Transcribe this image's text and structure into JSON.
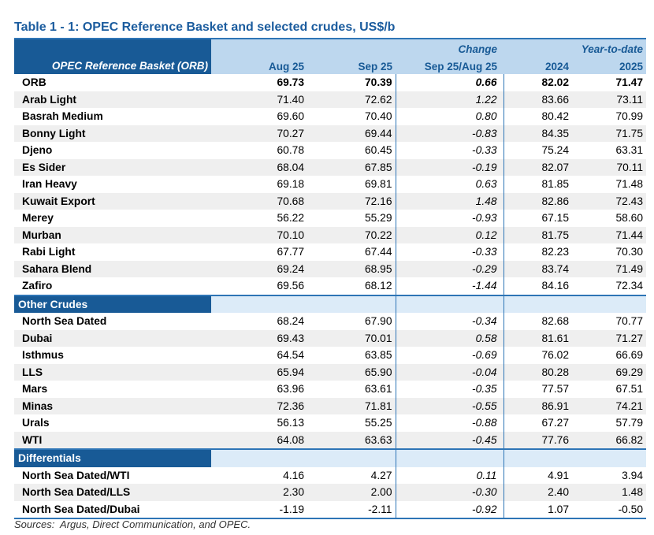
{
  "title": "Table 1 - 1: OPEC Reference Basket and selected crudes, US$/b",
  "table": {
    "corner_header": "OPEC Reference Basket (ORB)",
    "group_headers": {
      "blank": "",
      "change": "Change",
      "ytd": "Year-to-date"
    },
    "columns": [
      "Aug 25",
      "Sep 25",
      "Sep 25/Aug 25",
      "2024",
      "2025"
    ],
    "sections": [
      {
        "name": "",
        "rows": [
          {
            "label": "ORB",
            "values": [
              "69.73",
              "70.39",
              "0.66",
              "82.02",
              "71.47"
            ],
            "bold": true
          },
          {
            "label": "Arab Light",
            "values": [
              "71.40",
              "72.62",
              "1.22",
              "83.66",
              "73.11"
            ]
          },
          {
            "label": "Basrah Medium",
            "values": [
              "69.60",
              "70.40",
              "0.80",
              "80.42",
              "70.99"
            ]
          },
          {
            "label": "Bonny Light",
            "values": [
              "70.27",
              "69.44",
              "-0.83",
              "84.35",
              "71.75"
            ]
          },
          {
            "label": "Djeno",
            "values": [
              "60.78",
              "60.45",
              "-0.33",
              "75.24",
              "63.31"
            ]
          },
          {
            "label": "Es Sider",
            "values": [
              "68.04",
              "67.85",
              "-0.19",
              "82.07",
              "70.11"
            ]
          },
          {
            "label": "Iran Heavy",
            "values": [
              "69.18",
              "69.81",
              "0.63",
              "81.85",
              "71.48"
            ]
          },
          {
            "label": "Kuwait Export",
            "values": [
              "70.68",
              "72.16",
              "1.48",
              "82.86",
              "72.43"
            ]
          },
          {
            "label": "Merey",
            "values": [
              "56.22",
              "55.29",
              "-0.93",
              "67.15",
              "58.60"
            ]
          },
          {
            "label": "Murban",
            "values": [
              "70.10",
              "70.22",
              "0.12",
              "81.75",
              "71.44"
            ]
          },
          {
            "label": "Rabi Light",
            "values": [
              "67.77",
              "67.44",
              "-0.33",
              "82.23",
              "70.30"
            ]
          },
          {
            "label": "Sahara Blend",
            "values": [
              "69.24",
              "68.95",
              "-0.29",
              "83.74",
              "71.49"
            ]
          },
          {
            "label": "Zafiro",
            "values": [
              "69.56",
              "68.12",
              "-1.44",
              "84.16",
              "72.34"
            ]
          }
        ]
      },
      {
        "name": "Other Crudes",
        "rows": [
          {
            "label": "North Sea Dated",
            "values": [
              "68.24",
              "67.90",
              "-0.34",
              "82.68",
              "70.77"
            ]
          },
          {
            "label": "Dubai",
            "values": [
              "69.43",
              "70.01",
              "0.58",
              "81.61",
              "71.27"
            ]
          },
          {
            "label": "Isthmus",
            "values": [
              "64.54",
              "63.85",
              "-0.69",
              "76.02",
              "66.69"
            ]
          },
          {
            "label": "LLS",
            "values": [
              "65.94",
              "65.90",
              "-0.04",
              "80.28",
              "69.29"
            ]
          },
          {
            "label": "Mars",
            "values": [
              "63.96",
              "63.61",
              "-0.35",
              "77.57",
              "67.51"
            ]
          },
          {
            "label": "Minas",
            "values": [
              "72.36",
              "71.81",
              "-0.55",
              "86.91",
              "74.21"
            ]
          },
          {
            "label": "Urals",
            "values": [
              "56.13",
              "55.25",
              "-0.88",
              "67.27",
              "57.79"
            ]
          },
          {
            "label": "WTI",
            "values": [
              "64.08",
              "63.63",
              "-0.45",
              "77.76",
              "66.82"
            ]
          }
        ]
      },
      {
        "name": "Differentials",
        "rows": [
          {
            "label": "North Sea Dated/WTI",
            "values": [
              "4.16",
              "4.27",
              "0.11",
              "4.91",
              "3.94"
            ]
          },
          {
            "label": "North Sea Dated/LLS",
            "values": [
              "2.30",
              "2.00",
              "-0.30",
              "2.40",
              "1.48"
            ]
          },
          {
            "label": "North Sea Dated/Dubai",
            "values": [
              "-1.19",
              "-2.11",
              "-0.92",
              "1.07",
              "-0.50"
            ]
          }
        ]
      }
    ]
  },
  "footer": "Sources:  Argus, Direct Communication, and OPEC.",
  "colors": {
    "dark_blue": "#185a96",
    "header_light_blue": "#bdd7ee",
    "section_light_blue": "#dcebf8",
    "stripe_gray": "#efefef",
    "line_blue": "#2e75b6",
    "title_blue": "#1b5c9e"
  }
}
